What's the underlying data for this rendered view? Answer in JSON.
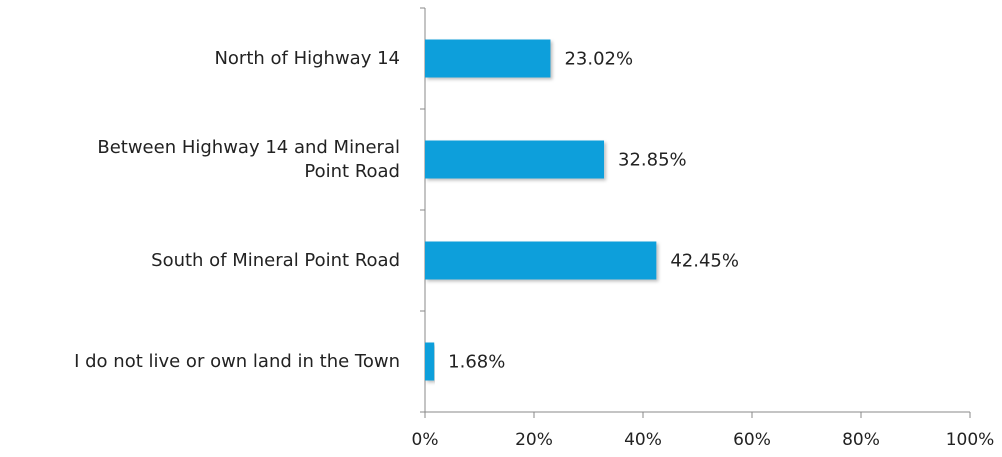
{
  "chart_data": {
    "type": "bar",
    "orientation": "horizontal",
    "categories": [
      "North of Highway 14",
      "Between Highway 14 and Mineral Point Road",
      "South of Mineral Point Road",
      "I do not live or own land in the Town"
    ],
    "values": [
      23.02,
      32.85,
      42.45,
      1.68
    ],
    "value_labels": [
      "23.02%",
      "32.85%",
      "42.45%",
      "1.68%"
    ],
    "color": "#0a9fdb",
    "xlim": [
      0,
      100
    ],
    "xticks": [
      {
        "value": 0,
        "label": "0%"
      },
      {
        "value": 20,
        "label": "20%"
      },
      {
        "value": 40,
        "label": "40%"
      },
      {
        "value": 60,
        "label": "60%"
      },
      {
        "value": 80,
        "label": "80%"
      },
      {
        "value": 100,
        "label": "100%"
      }
    ],
    "grid": false
  }
}
